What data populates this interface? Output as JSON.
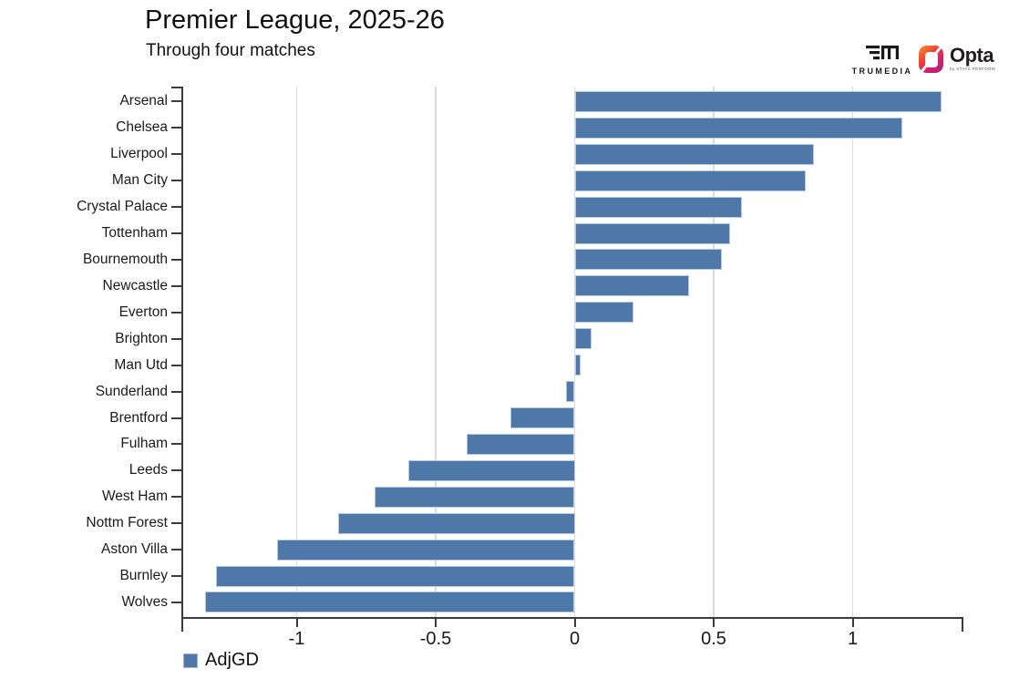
{
  "header": {
    "title": "Premier League, 2025-26",
    "subtitle": "Through four matches"
  },
  "branding": {
    "trumedia_label": "TRUMEDIA",
    "opta_label": "Opta",
    "opta_sub": "by STATS PERFORM"
  },
  "legend": {
    "label": "AdjGD",
    "swatch_color": "#4d78a8"
  },
  "chart_data": {
    "type": "bar",
    "orientation": "horizontal",
    "title": "Premier League, 2025-26",
    "subtitle": "Through four matches",
    "series_name": "AdjGD",
    "categories": [
      "Arsenal",
      "Chelsea",
      "Liverpool",
      "Man City",
      "Crystal Palace",
      "Tottenham",
      "Bournemouth",
      "Newcastle",
      "Everton",
      "Brighton",
      "Man Utd",
      "Sunderland",
      "Brentford",
      "Fulham",
      "Leeds",
      "West Ham",
      "Nottm Forest",
      "Aston Villa",
      "Burnley",
      "Wolves"
    ],
    "values": [
      1.32,
      1.18,
      0.86,
      0.83,
      0.6,
      0.56,
      0.53,
      0.41,
      0.21,
      0.06,
      0.02,
      -0.03,
      -0.23,
      -0.39,
      -0.6,
      -0.72,
      -0.85,
      -1.07,
      -1.29,
      -1.33
    ],
    "x_ticks": [
      -1,
      -0.5,
      0,
      0.5,
      1
    ],
    "x_tick_labels": [
      "-1",
      "-0.5",
      "0",
      "0.5",
      "1"
    ],
    "xlim": [
      -1.41,
      1.4
    ],
    "xlabel": "",
    "ylabel": "",
    "grid": true,
    "bar_color": "#4d78a8",
    "bar_border_color": "#b7c8de",
    "legend_position": "bottom-left"
  }
}
